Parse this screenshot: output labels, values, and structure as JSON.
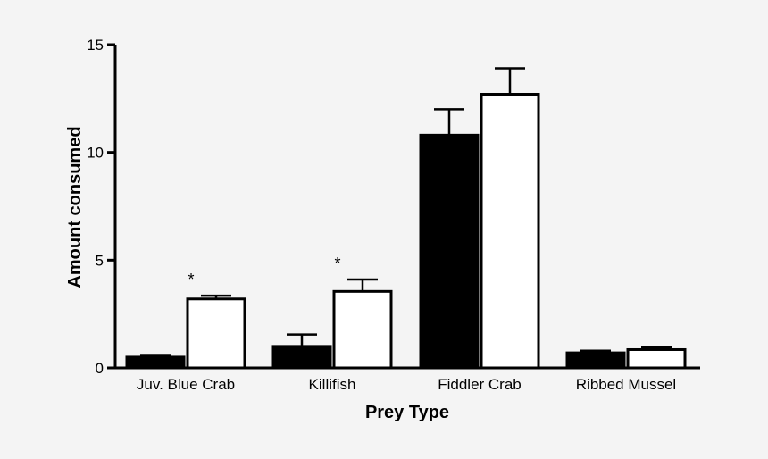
{
  "chart_data": {
    "type": "bar",
    "title": "",
    "xlabel": "Prey Type",
    "ylabel": "Amount consumed",
    "ylim": [
      0,
      15
    ],
    "yticks": [
      0,
      5,
      10,
      15
    ],
    "categories": [
      "Juv. Blue Crab",
      "Killifish",
      "Fiddler Crab",
      "Ribbed Mussel"
    ],
    "series": [
      {
        "fill": "#000000",
        "values": [
          0.5,
          1.0,
          10.8,
          0.7
        ],
        "errors": [
          0.1,
          0.55,
          1.2,
          0.1
        ]
      },
      {
        "fill": "#ffffff",
        "values": [
          3.2,
          3.55,
          12.7,
          0.85
        ],
        "errors": [
          0.15,
          0.55,
          1.2,
          0.1
        ]
      }
    ],
    "annotations": [
      {
        "category": "Juv. Blue Crab",
        "text": "*"
      },
      {
        "category": "Killifish",
        "text": "*"
      }
    ],
    "grid": false,
    "legend": "none"
  }
}
